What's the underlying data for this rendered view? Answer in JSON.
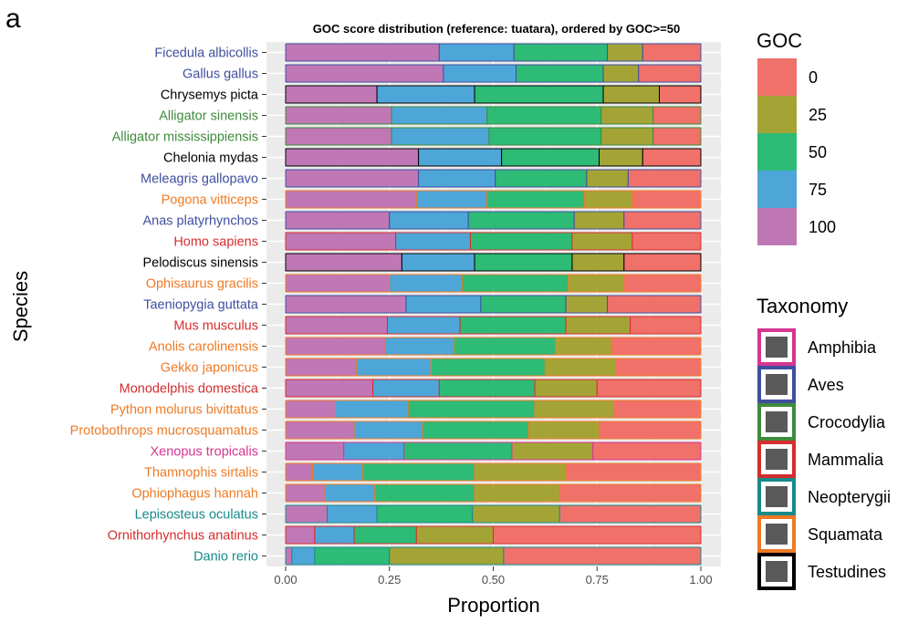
{
  "panel_label": "a",
  "chart_data": {
    "type": "bar",
    "orientation": "horizontal",
    "stacked": true,
    "title": "GOC score distribution (reference: tuatara), ordered by GOC>=50",
    "xlabel": "Proportion",
    "ylabel": "Species",
    "xlim": [
      0,
      1
    ],
    "xticks": [
      "0.00",
      "0.25",
      "0.50",
      "0.75",
      "1.00"
    ],
    "grid": true,
    "background": "#ebebeb",
    "categories": [
      "Ficedula albicollis",
      "Gallus gallus",
      "Chrysemys picta",
      "Alligator sinensis",
      "Alligator mississippiensis",
      "Chelonia mydas",
      "Meleagris gallopavo",
      "Pogona vitticeps",
      "Anas platyrhynchos",
      "Homo sapiens",
      "Pelodiscus sinensis",
      "Ophisaurus gracilis",
      "Taeniopygia guttata",
      "Mus musculus",
      "Anolis carolinensis",
      "Gekko japonicus",
      "Monodelphis domestica",
      "Python molurus bivittatus",
      "Protobothrops mucrosquamatus",
      "Xenopus tropicalis",
      "Thamnophis sirtalis",
      "Ophiophagus hannah",
      "Lepisosteus oculatus",
      "Ornithorhynchus anatinus",
      "Danio rerio"
    ],
    "taxonomy": [
      "Aves",
      "Aves",
      "Testudines",
      "Crocodylia",
      "Crocodylia",
      "Testudines",
      "Aves",
      "Squamata",
      "Aves",
      "Mammalia",
      "Testudines",
      "Squamata",
      "Aves",
      "Mammalia",
      "Squamata",
      "Squamata",
      "Mammalia",
      "Squamata",
      "Squamata",
      "Amphibia",
      "Squamata",
      "Squamata",
      "Neopterygii",
      "Mammalia",
      "Neopterygii"
    ],
    "series": [
      {
        "name": "100",
        "color": "#c077b5",
        "values": [
          0.37,
          0.38,
          0.22,
          0.255,
          0.255,
          0.32,
          0.32,
          0.315,
          0.25,
          0.265,
          0.28,
          0.25,
          0.29,
          0.245,
          0.24,
          0.17,
          0.21,
          0.12,
          0.165,
          0.14,
          0.065,
          0.095,
          0.1,
          0.07,
          0.015
        ]
      },
      {
        "name": "75",
        "color": "#4ea6d8",
        "values": [
          0.18,
          0.175,
          0.235,
          0.23,
          0.235,
          0.2,
          0.185,
          0.17,
          0.19,
          0.18,
          0.175,
          0.175,
          0.18,
          0.175,
          0.165,
          0.18,
          0.16,
          0.175,
          0.165,
          0.145,
          0.12,
          0.12,
          0.12,
          0.095,
          0.055
        ]
      },
      {
        "name": "50",
        "color": "#2dbb76",
        "values": [
          0.225,
          0.21,
          0.31,
          0.275,
          0.27,
          0.235,
          0.22,
          0.235,
          0.255,
          0.245,
          0.235,
          0.255,
          0.205,
          0.255,
          0.245,
          0.275,
          0.23,
          0.305,
          0.255,
          0.26,
          0.27,
          0.24,
          0.23,
          0.15,
          0.18
        ]
      },
      {
        "name": "25",
        "color": "#a4a436",
        "values": [
          0.085,
          0.085,
          0.135,
          0.125,
          0.125,
          0.105,
          0.1,
          0.115,
          0.12,
          0.145,
          0.125,
          0.135,
          0.1,
          0.155,
          0.135,
          0.17,
          0.15,
          0.19,
          0.17,
          0.195,
          0.22,
          0.205,
          0.21,
          0.185,
          0.275
        ]
      },
      {
        "name": "0",
        "color": "#f0716a",
        "values": [
          0.14,
          0.15,
          0.1,
          0.115,
          0.115,
          0.14,
          0.175,
          0.165,
          0.185,
          0.165,
          0.185,
          0.185,
          0.225,
          0.17,
          0.215,
          0.205,
          0.25,
          0.21,
          0.245,
          0.26,
          0.325,
          0.34,
          0.34,
          0.5,
          0.475
        ]
      }
    ],
    "legends": [
      {
        "title": "GOC",
        "items": [
          {
            "label": "0",
            "color": "#f0716a"
          },
          {
            "label": "25",
            "color": "#a4a436"
          },
          {
            "label": "50",
            "color": "#2dbb76"
          },
          {
            "label": "75",
            "color": "#4ea6d8"
          },
          {
            "label": "100",
            "color": "#c077b5"
          }
        ]
      },
      {
        "title": "Taxonomy",
        "items": [
          {
            "label": "Amphibia",
            "color": "#d63591"
          },
          {
            "label": "Aves",
            "color": "#3f4f9e"
          },
          {
            "label": "Crocodylia",
            "color": "#3f8a3c"
          },
          {
            "label": "Mammalia",
            "color": "#d42d2d"
          },
          {
            "label": "Neopterygii",
            "color": "#178a8a"
          },
          {
            "label": "Squamata",
            "color": "#ee7a25"
          },
          {
            "label": "Testudines",
            "color": "#000000"
          }
        ]
      }
    ],
    "legend_position": "right"
  }
}
